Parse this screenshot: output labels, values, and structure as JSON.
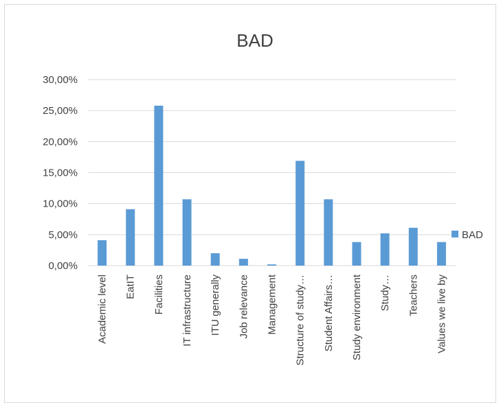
{
  "chart_data": {
    "type": "bar",
    "title": "BAD",
    "xlabel": "",
    "ylabel": "",
    "ylim": [
      0,
      0.3
    ],
    "yticks": [
      0,
      0.05,
      0.1,
      0.15,
      0.2,
      0.25,
      0.3
    ],
    "ytick_labels": [
      "0,00%",
      "5,00%",
      "10,00%",
      "15,00%",
      "20,00%",
      "25,00%",
      "30,00%"
    ],
    "grid": true,
    "legend_position": "right",
    "categories": [
      "Academic level",
      "EatIT",
      "Facilities",
      "IT infrastructure",
      "ITU generally",
      "Job relevance",
      "Management",
      "Structure of study…",
      "Student Affairs…",
      "Study environment",
      "Study…",
      "Teachers",
      "Values we live by"
    ],
    "series": [
      {
        "name": "BAD",
        "color": "#5b9bd5",
        "values": [
          0.041,
          0.091,
          0.258,
          0.107,
          0.02,
          0.011,
          0.002,
          0.169,
          0.107,
          0.038,
          0.052,
          0.061,
          0.038
        ]
      }
    ],
    "colors": {
      "bar": "#5b9bd5",
      "grid": "#d9d9d9",
      "text": "#404040"
    }
  }
}
